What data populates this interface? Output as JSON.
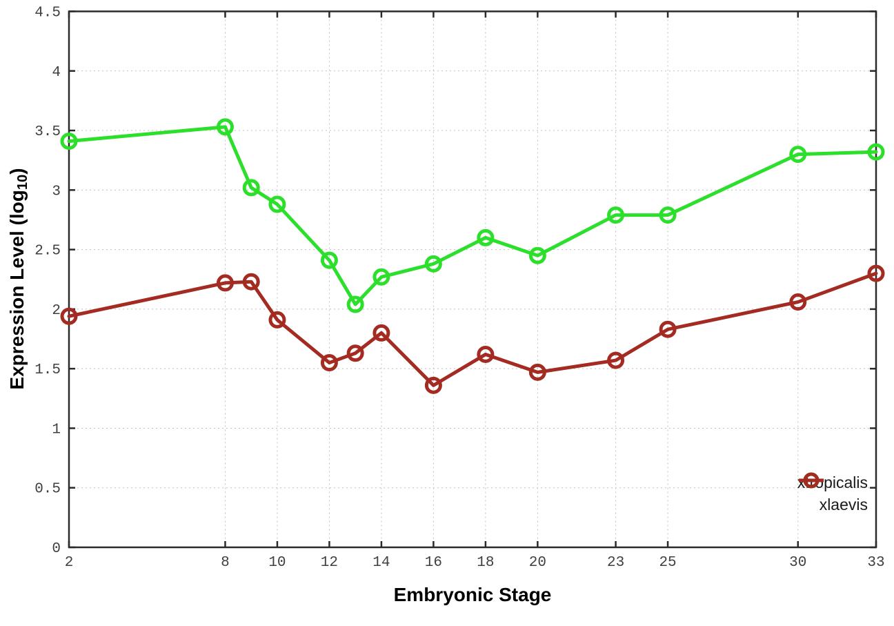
{
  "chart_data": {
    "type": "line",
    "title": "",
    "xlabel": "Embryonic Stage",
    "ylabel": "Expression Level (log10)",
    "ylabel_parts": {
      "prefix": "Expression Level (log",
      "sub": "10",
      "suffix": ")"
    },
    "xlim": [
      2,
      33
    ],
    "ylim": [
      0,
      4.5
    ],
    "grid": true,
    "grid_style": "dotted",
    "legend_position": "inside-bottom-right",
    "xticks": [
      2,
      8,
      10,
      12,
      14,
      16,
      18,
      20,
      23,
      25,
      30,
      33
    ],
    "xtick_labels": [
      "2",
      "8",
      "10",
      "12",
      "14",
      "16",
      "18",
      "20",
      "23",
      "25",
      "30",
      "33"
    ],
    "yticks": [
      0,
      0.5,
      1,
      1.5,
      2,
      2.5,
      3,
      3.5,
      4,
      4.5
    ],
    "ytick_labels": [
      "0",
      "0.5",
      "1",
      "1.5",
      "2",
      "2.5",
      "3",
      "3.5",
      "4",
      "4.5"
    ],
    "x": [
      2,
      8,
      9,
      10,
      12,
      13,
      14,
      16,
      18,
      20,
      23,
      25,
      30,
      33
    ],
    "series": [
      {
        "name": "xtropicalis",
        "color": "#2bdf2b",
        "marker": "open-circle",
        "values": [
          3.41,
          3.53,
          3.02,
          2.88,
          2.41,
          2.04,
          2.27,
          2.38,
          2.6,
          2.45,
          2.79,
          2.79,
          3.3,
          3.32
        ]
      },
      {
        "name": "xlaevis",
        "color": "#a32b22",
        "marker": "open-circle",
        "values": [
          1.94,
          2.22,
          2.23,
          1.91,
          1.55,
          1.63,
          1.8,
          1.36,
          1.62,
          1.47,
          1.57,
          1.83,
          2.06,
          2.3
        ]
      }
    ],
    "colors": {
      "border": "#2a2a2a",
      "gridline": "#bfbfbf",
      "tick_text": "#3f3f3f"
    }
  }
}
